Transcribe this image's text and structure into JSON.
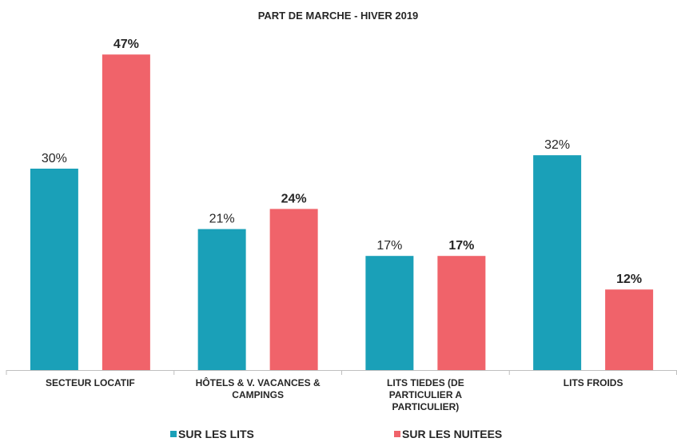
{
  "chart_data": {
    "type": "bar",
    "title": "PART DE MARCHE - HIVER 2019",
    "categories": [
      "SECTEUR LOCATIF",
      "HÔTELS & V. VACANCES & CAMPINGS",
      "LITS TIEDES (DE PARTICULIER A PARTICULIER)",
      "LITS FROIDS"
    ],
    "series": [
      {
        "name": "SUR LES LITS",
        "color": "#1aa0b8",
        "values": [
          30,
          21,
          17,
          32
        ],
        "value_labels": [
          "30%",
          "21%",
          "17%",
          "32%"
        ]
      },
      {
        "name": "SUR LES NUITEES",
        "color": "#f0636a",
        "values": [
          47,
          24,
          17,
          12
        ],
        "value_labels": [
          "47%",
          "24%",
          "17%",
          "12%"
        ]
      }
    ],
    "legend": "bottom"
  }
}
